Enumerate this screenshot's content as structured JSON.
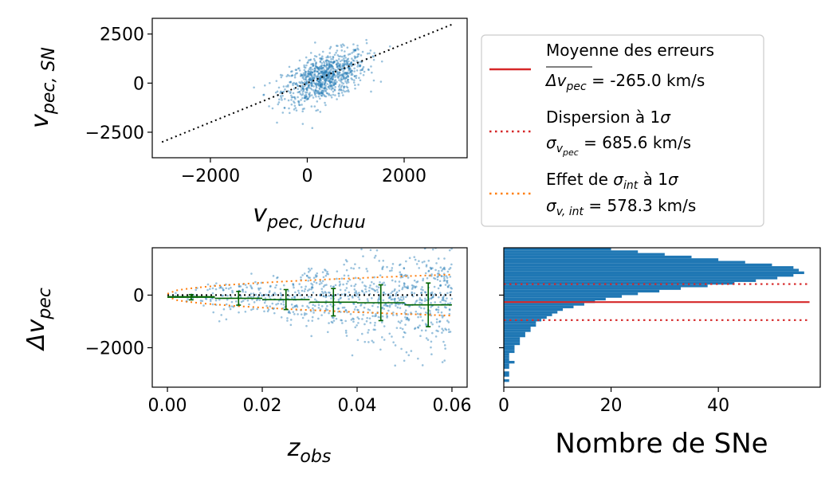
{
  "chart_data": [
    {
      "type": "scatter",
      "panel": "top-left",
      "xlabel": "v_pec,Uchuu",
      "ylabel": "v_pec,SN",
      "xlim": [
        -3200,
        3300
      ],
      "ylim": [
        -3800,
        3300
      ],
      "xticks": [
        -2000,
        0,
        2000
      ],
      "xtick_labels": [
        "−2000",
        "0",
        "2000"
      ],
      "yticks": [
        2500,
        0,
        -2500
      ],
      "ytick_labels": [
        "2500",
        "0",
        "−2500"
      ],
      "grid": false,
      "color": "#1f77b4",
      "series": [
        {
          "kind": "points",
          "n": 900,
          "x_mean": 350,
          "x_std": 430,
          "slope": 0.82,
          "scatter": 590,
          "x_range": [
            -1100,
            2000
          ]
        },
        {
          "kind": "reference-line",
          "style": "dotted",
          "color": "#000000",
          "x": [
            -3000,
            3000
          ],
          "y": [
            -3000,
            3000
          ]
        }
      ]
    },
    {
      "type": "scatter",
      "panel": "bottom-left",
      "xlabel": "z_obs",
      "ylabel": "Δv_pec",
      "xlim": [
        -0.0032,
        0.0632
      ],
      "ylim": [
        -3500,
        1800
      ],
      "xticks": [
        0.0,
        0.02,
        0.04,
        0.06
      ],
      "xtick_labels": [
        "0.00",
        "0.02",
        "0.04",
        "0.06"
      ],
      "yticks": [
        0,
        -2000
      ],
      "ytick_labels": [
        "0",
        "−2000"
      ],
      "color": "#1f77b4",
      "scatter_points": {
        "n": 900,
        "x_range": [
          0.0,
          0.06
        ],
        "y_mean": -265,
        "y_std": 650
      },
      "zero_line": {
        "style": "dotted",
        "color": "#000000",
        "y": 0
      },
      "sigma_int_band": {
        "style": "dotted",
        "color": "#ff7f0e",
        "x": [
          0.0,
          0.06
        ],
        "upper": [
          50,
          780
        ],
        "lower": [
          -60,
          -780
        ]
      },
      "binned_means": {
        "color": "#006400",
        "x": [
          0.005,
          0.015,
          0.025,
          0.035,
          0.045,
          0.055
        ],
        "x_halfwidth": 0.005,
        "y": [
          -80,
          -120,
          -170,
          -270,
          -290,
          -370
        ],
        "yerr": [
          100,
          260,
          380,
          520,
          680,
          830
        ],
        "first_segment": {
          "x": [
            0.0,
            0.01
          ],
          "y": -60
        }
      }
    },
    {
      "type": "bar",
      "orientation": "horizontal",
      "panel": "bottom-right",
      "xlabel": "Nombre de SNe",
      "xlim": [
        0,
        59
      ],
      "ylim": [
        -3500,
        1800
      ],
      "xticks": [
        0,
        20,
        40
      ],
      "xtick_labels": [
        "0",
        "20",
        "40"
      ],
      "color": "#1f77b4",
      "bin_width": 100,
      "bins_start": -3300,
      "counts": [
        1,
        0,
        1,
        1,
        0,
        1,
        1,
        2,
        1,
        1,
        1,
        2,
        2,
        2,
        3,
        3,
        3,
        4,
        4,
        5,
        5,
        6,
        6,
        7,
        8,
        9,
        10,
        11,
        13,
        15,
        17,
        19,
        22,
        25,
        29,
        33,
        38,
        43,
        47,
        51,
        54,
        56,
        55,
        54,
        50,
        45,
        40,
        35,
        30,
        25,
        20,
        16,
        13,
        10,
        8,
        6,
        5,
        4,
        3,
        2,
        2,
        1,
        1,
        1,
        1,
        1,
        0,
        1
      ],
      "lines": [
        {
          "name": "mean",
          "y": -265,
          "style": "solid",
          "color": "#d62728"
        },
        {
          "name": "+1sigma",
          "y": 420.6,
          "style": "dotted",
          "color": "#d62728"
        },
        {
          "name": "-1sigma",
          "y": -950.6,
          "style": "dotted",
          "color": "#d62728"
        }
      ]
    }
  ],
  "legend": {
    "placement": "top-right",
    "entries": [
      {
        "line_style": "solid",
        "color": "#d62728",
        "line1": "Moyenne des erreurs",
        "line2_sym": "Δv",
        "line2_sub": "pec",
        "line2_eq": " =  -265.0 km/s"
      },
      {
        "line_style": "dotted",
        "color": "#d62728",
        "line1_text": "Dispersion à 1",
        "line1_sym": "σ",
        "line2_sym": "σ",
        "line2_sub": "v",
        "line2_subsub": "pec",
        "line2_eq": " =  685.6 km/s"
      },
      {
        "line_style": "dotted",
        "color": "#ff7f0e",
        "line1_a": "Effet de ",
        "line1_sym": "σ",
        "line1_sub": "int",
        "line1_b": " à 1",
        "line1_sym2": "σ",
        "line2_sym": "σ",
        "line2_sub": "v, int",
        "line2_eq": " = 578.3 km/s"
      }
    ]
  },
  "labels": {
    "tl_x_main": "v",
    "tl_x_sub": "pec, Uchuu",
    "tl_y_main": "v",
    "tl_y_sub": "pec, SN",
    "bl_x_main": "z",
    "bl_x_sub": "obs",
    "bl_y_main": "Δv",
    "bl_y_sub": "pec",
    "br_x": "Nombre de SNe"
  }
}
